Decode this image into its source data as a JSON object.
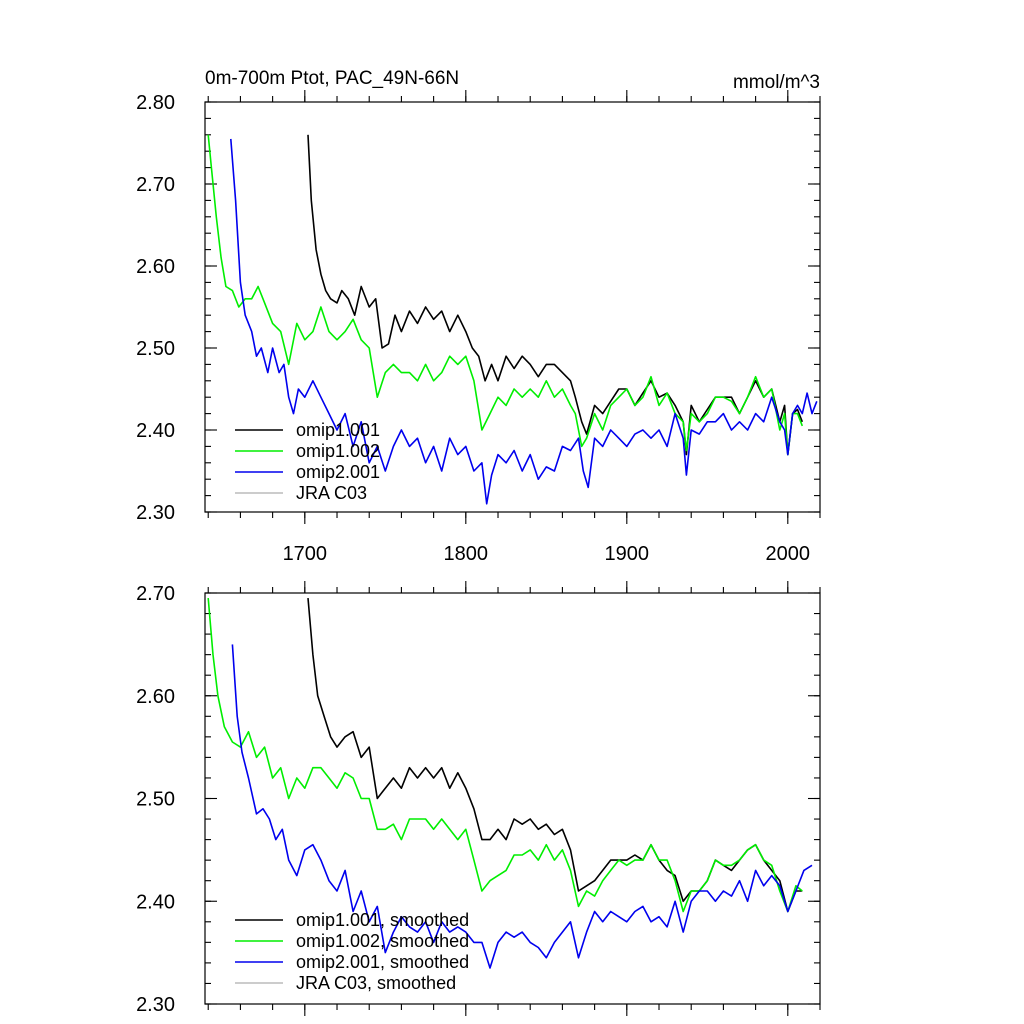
{
  "header": {
    "title": "0m-700m Ptot, PAC_49N-66N",
    "units": "mmol/m^3"
  },
  "colors": {
    "omip1_001": "#000000",
    "omip1_002": "#00ee00",
    "omip2_001": "#0000ee",
    "jra_c03": "#bbbbbb"
  },
  "chart_data": [
    {
      "type": "line",
      "title": "0m-700m Ptot, PAC_49N-66N",
      "xlabel": "",
      "ylabel": "",
      "xlim": [
        1638,
        2020
      ],
      "ylim": [
        2.3,
        2.8
      ],
      "xticks": [
        1700,
        1800,
        1900,
        2000
      ],
      "xtick_labels": [
        "1700",
        "1800",
        "1900",
        "2000"
      ],
      "yticks": [
        2.3,
        2.4,
        2.5,
        2.6,
        2.7,
        2.8
      ],
      "ytick_labels": [
        "2.30",
        "2.40",
        "2.50",
        "2.60",
        "2.70",
        "2.80"
      ],
      "legend_position": "bottom-left",
      "grid": false,
      "series": [
        {
          "name": "omip1.001",
          "color": "#000000",
          "x": [
            1702,
            1704,
            1707,
            1710,
            1713,
            1716,
            1720,
            1723,
            1727,
            1731,
            1735,
            1740,
            1744,
            1748,
            1752,
            1756,
            1760,
            1765,
            1770,
            1775,
            1780,
            1785,
            1790,
            1795,
            1800,
            1804,
            1808,
            1812,
            1816,
            1820,
            1825,
            1830,
            1835,
            1840,
            1845,
            1850,
            1855,
            1860,
            1865,
            1868,
            1872,
            1875,
            1880,
            1885,
            1890,
            1895,
            1900,
            1905,
            1910,
            1915,
            1920,
            1925,
            1930,
            1935,
            1937,
            1940,
            1945,
            1950,
            1955,
            1960,
            1965,
            1970,
            1975,
            1980,
            1985,
            1990,
            1995,
            1998,
            2000,
            2003,
            2006,
            2009
          ],
          "y": [
            2.76,
            2.68,
            2.62,
            2.59,
            2.57,
            2.56,
            2.555,
            2.57,
            2.56,
            2.54,
            2.575,
            2.55,
            2.56,
            2.5,
            2.505,
            2.54,
            2.52,
            2.545,
            2.53,
            2.55,
            2.535,
            2.545,
            2.52,
            2.54,
            2.52,
            2.5,
            2.49,
            2.46,
            2.48,
            2.46,
            2.49,
            2.475,
            2.49,
            2.48,
            2.465,
            2.48,
            2.48,
            2.47,
            2.46,
            2.44,
            2.41,
            2.395,
            2.43,
            2.42,
            2.435,
            2.45,
            2.45,
            2.43,
            2.445,
            2.46,
            2.44,
            2.445,
            2.43,
            2.41,
            2.37,
            2.43,
            2.41,
            2.425,
            2.44,
            2.44,
            2.44,
            2.42,
            2.44,
            2.46,
            2.44,
            2.45,
            2.41,
            2.43,
            2.37,
            2.42,
            2.425,
            2.41
          ]
        },
        {
          "name": "omip1.002",
          "color": "#00ee00",
          "x": [
            1640,
            1642,
            1645,
            1648,
            1651,
            1655,
            1659,
            1663,
            1667,
            1671,
            1675,
            1680,
            1685,
            1690,
            1695,
            1700,
            1705,
            1710,
            1715,
            1720,
            1725,
            1730,
            1735,
            1740,
            1745,
            1750,
            1755,
            1760,
            1765,
            1770,
            1775,
            1780,
            1785,
            1790,
            1795,
            1800,
            1805,
            1810,
            1815,
            1820,
            1825,
            1830,
            1835,
            1840,
            1845,
            1850,
            1855,
            1860,
            1865,
            1868,
            1872,
            1875,
            1880,
            1885,
            1890,
            1895,
            1900,
            1905,
            1910,
            1915,
            1920,
            1925,
            1930,
            1935,
            1937,
            1940,
            1945,
            1950,
            1955,
            1960,
            1965,
            1970,
            1975,
            1980,
            1985,
            1990,
            1995,
            1998,
            2000,
            2003,
            2006,
            2009
          ],
          "y": [
            2.76,
            2.72,
            2.66,
            2.61,
            2.575,
            2.57,
            2.55,
            2.56,
            2.56,
            2.575,
            2.555,
            2.53,
            2.52,
            2.48,
            2.53,
            2.51,
            2.52,
            2.55,
            2.52,
            2.51,
            2.52,
            2.535,
            2.51,
            2.5,
            2.44,
            2.47,
            2.48,
            2.47,
            2.47,
            2.46,
            2.48,
            2.46,
            2.47,
            2.49,
            2.48,
            2.49,
            2.46,
            2.4,
            2.42,
            2.44,
            2.43,
            2.45,
            2.44,
            2.45,
            2.44,
            2.46,
            2.44,
            2.45,
            2.43,
            2.42,
            2.38,
            2.39,
            2.42,
            2.4,
            2.43,
            2.44,
            2.45,
            2.43,
            2.44,
            2.465,
            2.43,
            2.445,
            2.42,
            2.41,
            2.375,
            2.42,
            2.41,
            2.42,
            2.44,
            2.44,
            2.435,
            2.42,
            2.44,
            2.465,
            2.44,
            2.45,
            2.4,
            2.42,
            2.37,
            2.42,
            2.42,
            2.405
          ]
        },
        {
          "name": "omip2.001",
          "color": "#0000ee",
          "x": [
            1654,
            1657,
            1660,
            1663,
            1667,
            1670,
            1673,
            1677,
            1680,
            1684,
            1687,
            1690,
            1693,
            1696,
            1700,
            1705,
            1710,
            1715,
            1720,
            1725,
            1730,
            1735,
            1740,
            1745,
            1750,
            1755,
            1760,
            1765,
            1770,
            1775,
            1780,
            1785,
            1790,
            1795,
            1800,
            1805,
            1810,
            1813,
            1816,
            1820,
            1825,
            1830,
            1835,
            1840,
            1845,
            1850,
            1855,
            1860,
            1865,
            1870,
            1873,
            1876,
            1880,
            1885,
            1890,
            1895,
            1900,
            1905,
            1910,
            1915,
            1920,
            1925,
            1930,
            1935,
            1937,
            1940,
            1945,
            1950,
            1955,
            1960,
            1965,
            1970,
            1975,
            1980,
            1985,
            1990,
            1995,
            1998,
            2000,
            2003,
            2006,
            2009,
            2012,
            2015,
            2018
          ],
          "y": [
            2.755,
            2.68,
            2.58,
            2.54,
            2.52,
            2.49,
            2.5,
            2.47,
            2.5,
            2.47,
            2.48,
            2.44,
            2.42,
            2.45,
            2.44,
            2.46,
            2.44,
            2.42,
            2.4,
            2.42,
            2.38,
            2.41,
            2.36,
            2.38,
            2.35,
            2.38,
            2.4,
            2.38,
            2.39,
            2.36,
            2.38,
            2.35,
            2.39,
            2.37,
            2.38,
            2.35,
            2.36,
            2.31,
            2.345,
            2.37,
            2.36,
            2.375,
            2.35,
            2.37,
            2.34,
            2.355,
            2.35,
            2.38,
            2.375,
            2.39,
            2.35,
            2.33,
            2.39,
            2.38,
            2.4,
            2.39,
            2.38,
            2.395,
            2.4,
            2.39,
            2.4,
            2.38,
            2.42,
            2.39,
            2.345,
            2.4,
            2.395,
            2.41,
            2.41,
            2.42,
            2.4,
            2.41,
            2.4,
            2.42,
            2.41,
            2.44,
            2.41,
            2.4,
            2.37,
            2.42,
            2.43,
            2.42,
            2.445,
            2.42,
            2.435
          ]
        },
        {
          "name": "JRA C03",
          "color": "#bbbbbb",
          "x": [],
          "y": []
        }
      ]
    },
    {
      "type": "line",
      "title": "",
      "xlabel": "",
      "ylabel": "",
      "xlim": [
        1638,
        2020
      ],
      "ylim": [
        2.3,
        2.7
      ],
      "xticks": [
        1700,
        1800,
        1900,
        2000
      ],
      "xtick_labels": [],
      "yticks": [
        2.3,
        2.4,
        2.5,
        2.6,
        2.7
      ],
      "ytick_labels": [
        "2.30",
        "2.40",
        "2.50",
        "2.60",
        "2.70"
      ],
      "legend_position": "bottom-left",
      "grid": false,
      "series": [
        {
          "name": "omip1.001, smoothed",
          "color": "#000000",
          "x": [
            1702,
            1705,
            1708,
            1712,
            1716,
            1720,
            1725,
            1730,
            1735,
            1740,
            1745,
            1750,
            1755,
            1760,
            1765,
            1770,
            1775,
            1780,
            1785,
            1790,
            1795,
            1800,
            1805,
            1810,
            1815,
            1820,
            1825,
            1830,
            1835,
            1840,
            1845,
            1850,
            1855,
            1860,
            1865,
            1870,
            1875,
            1880,
            1885,
            1890,
            1895,
            1900,
            1905,
            1910,
            1915,
            1920,
            1925,
            1930,
            1935,
            1940,
            1945,
            1950,
            1955,
            1960,
            1965,
            1970,
            1975,
            1980,
            1985,
            1990,
            1995,
            2000,
            2005,
            2009
          ],
          "y": [
            2.695,
            2.64,
            2.6,
            2.58,
            2.56,
            2.55,
            2.56,
            2.565,
            2.54,
            2.55,
            2.5,
            2.51,
            2.52,
            2.51,
            2.53,
            2.52,
            2.53,
            2.52,
            2.53,
            2.51,
            2.525,
            2.51,
            2.49,
            2.46,
            2.46,
            2.47,
            2.46,
            2.48,
            2.475,
            2.48,
            2.47,
            2.475,
            2.465,
            2.47,
            2.45,
            2.41,
            2.415,
            2.42,
            2.43,
            2.44,
            2.44,
            2.44,
            2.445,
            2.44,
            2.455,
            2.44,
            2.43,
            2.425,
            2.4,
            2.41,
            2.41,
            2.42,
            2.44,
            2.435,
            2.43,
            2.44,
            2.45,
            2.455,
            2.44,
            2.43,
            2.42,
            2.39,
            2.41,
            2.41
          ]
        },
        {
          "name": "omip1.002, smoothed",
          "color": "#00ee00",
          "x": [
            1640,
            1643,
            1646,
            1650,
            1655,
            1660,
            1665,
            1670,
            1675,
            1680,
            1685,
            1690,
            1695,
            1700,
            1705,
            1710,
            1715,
            1720,
            1725,
            1730,
            1735,
            1740,
            1745,
            1750,
            1755,
            1760,
            1765,
            1770,
            1775,
            1780,
            1785,
            1790,
            1795,
            1800,
            1805,
            1810,
            1815,
            1820,
            1825,
            1830,
            1835,
            1840,
            1845,
            1850,
            1855,
            1860,
            1865,
            1870,
            1875,
            1880,
            1885,
            1890,
            1895,
            1900,
            1905,
            1910,
            1915,
            1920,
            1925,
            1930,
            1935,
            1940,
            1945,
            1950,
            1955,
            1960,
            1965,
            1970,
            1975,
            1980,
            1985,
            1990,
            1995,
            2000,
            2005,
            2009
          ],
          "y": [
            2.695,
            2.64,
            2.6,
            2.57,
            2.555,
            2.55,
            2.565,
            2.54,
            2.55,
            2.52,
            2.53,
            2.5,
            2.52,
            2.51,
            2.53,
            2.53,
            2.52,
            2.51,
            2.525,
            2.52,
            2.5,
            2.5,
            2.47,
            2.47,
            2.475,
            2.46,
            2.48,
            2.48,
            2.48,
            2.47,
            2.48,
            2.47,
            2.46,
            2.47,
            2.44,
            2.41,
            2.42,
            2.425,
            2.43,
            2.445,
            2.445,
            2.45,
            2.44,
            2.455,
            2.44,
            2.45,
            2.43,
            2.395,
            2.41,
            2.405,
            2.42,
            2.43,
            2.44,
            2.435,
            2.44,
            2.44,
            2.455,
            2.44,
            2.44,
            2.42,
            2.39,
            2.41,
            2.41,
            2.42,
            2.44,
            2.435,
            2.435,
            2.44,
            2.45,
            2.455,
            2.44,
            2.435,
            2.41,
            2.39,
            2.415,
            2.41
          ]
        },
        {
          "name": "omip2.001, smoothed",
          "color": "#0000ee",
          "x": [
            1655,
            1658,
            1661,
            1665,
            1670,
            1674,
            1678,
            1682,
            1686,
            1690,
            1695,
            1700,
            1705,
            1710,
            1715,
            1720,
            1725,
            1730,
            1735,
            1740,
            1745,
            1750,
            1755,
            1760,
            1765,
            1770,
            1775,
            1780,
            1785,
            1790,
            1795,
            1800,
            1805,
            1810,
            1815,
            1820,
            1825,
            1830,
            1835,
            1840,
            1845,
            1850,
            1855,
            1860,
            1865,
            1870,
            1875,
            1880,
            1885,
            1890,
            1895,
            1900,
            1905,
            1910,
            1915,
            1920,
            1925,
            1930,
            1935,
            1940,
            1945,
            1950,
            1955,
            1960,
            1965,
            1970,
            1975,
            1980,
            1985,
            1990,
            1995,
            2000,
            2005,
            2010,
            2015
          ],
          "y": [
            2.65,
            2.58,
            2.545,
            2.52,
            2.485,
            2.49,
            2.48,
            2.46,
            2.47,
            2.44,
            2.425,
            2.45,
            2.455,
            2.44,
            2.42,
            2.41,
            2.43,
            2.39,
            2.41,
            2.38,
            2.395,
            2.35,
            2.37,
            2.385,
            2.375,
            2.37,
            2.38,
            2.36,
            2.38,
            2.37,
            2.375,
            2.37,
            2.36,
            2.36,
            2.335,
            2.36,
            2.37,
            2.365,
            2.37,
            2.36,
            2.355,
            2.345,
            2.36,
            2.37,
            2.38,
            2.345,
            2.37,
            2.39,
            2.38,
            2.39,
            2.385,
            2.38,
            2.39,
            2.395,
            2.38,
            2.385,
            2.375,
            2.4,
            2.37,
            2.4,
            2.41,
            2.41,
            2.4,
            2.41,
            2.405,
            2.42,
            2.4,
            2.43,
            2.415,
            2.425,
            2.415,
            2.39,
            2.41,
            2.43,
            2.435
          ]
        },
        {
          "name": "JRA C03, smoothed",
          "color": "#bbbbbb",
          "x": [],
          "y": []
        }
      ]
    }
  ]
}
